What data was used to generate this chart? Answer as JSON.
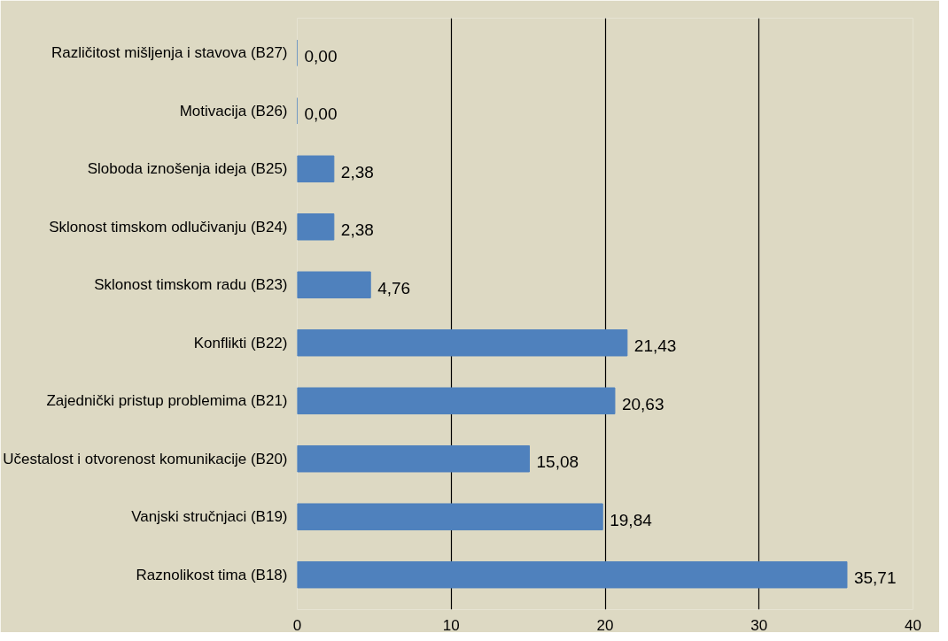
{
  "chart_data": {
    "type": "bar",
    "orientation": "horizontal",
    "categories": [
      "Različitost mišljenja i stavova (B27)",
      "Motivacija (B26)",
      "Sloboda iznošenja ideja (B25)",
      "Sklonost timskom odlučivanju (B24)",
      "Sklonost timskom radu (B23)",
      "Konflikti (B22)",
      "Zajednički pristup problemima (B21)",
      "Učestalost i otvorenost komunikacije (B20)",
      "Vanjski stručnjaci (B19)",
      "Raznolikost tima (B18)"
    ],
    "values": [
      0,
      0,
      2.38,
      2.38,
      4.76,
      21.43,
      20.63,
      15.08,
      19.84,
      35.71
    ],
    "value_labels": [
      "0,00",
      "0,00",
      "2,38",
      "2,38",
      "4,76",
      "21,43",
      "20,63",
      "15,08",
      "19,84",
      "35,71"
    ],
    "color": "#4f81bd",
    "xlim": [
      0,
      40
    ],
    "xticks": [
      0,
      10,
      20,
      30,
      40
    ],
    "grid": "x"
  }
}
